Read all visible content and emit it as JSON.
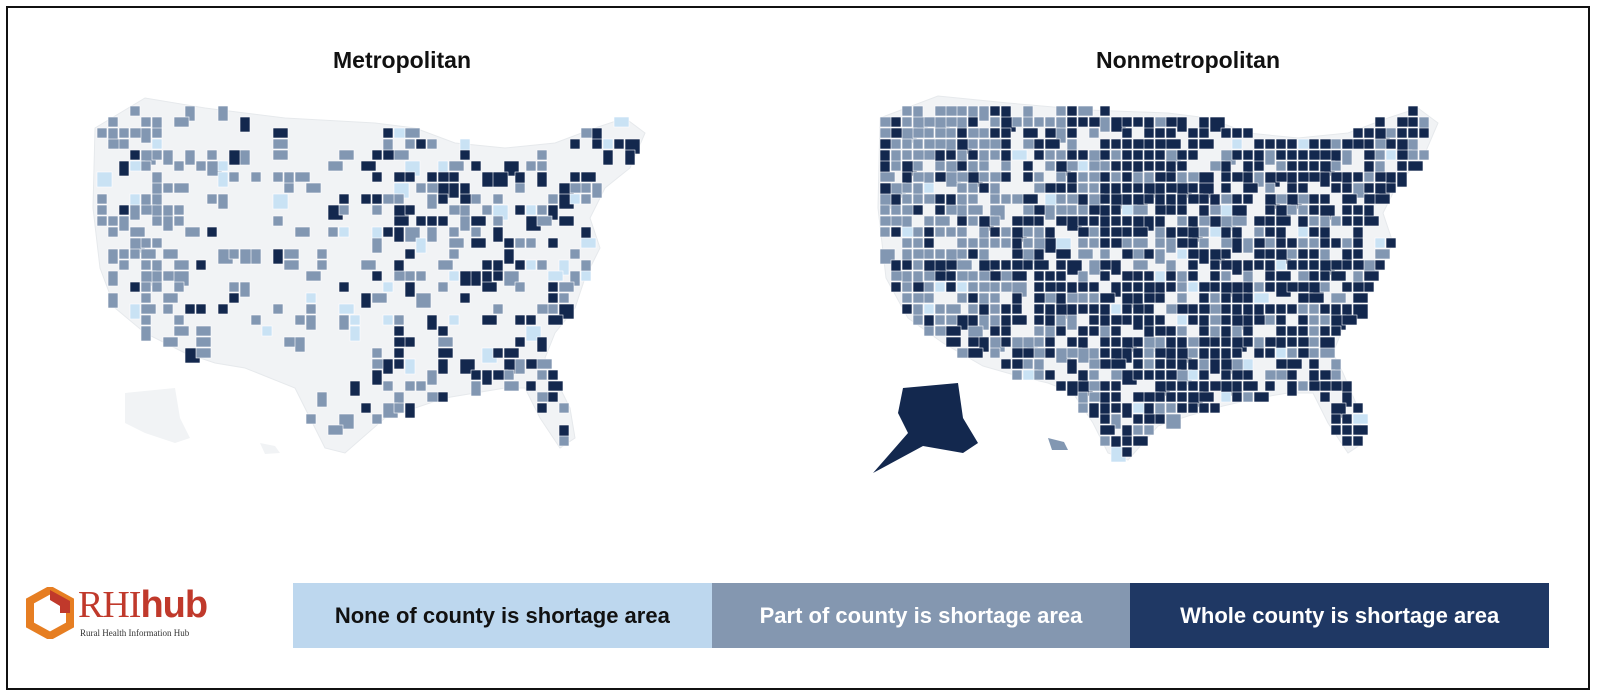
{
  "maps": [
    {
      "title": "Metropolitan",
      "icon": "us-county-map-icon"
    },
    {
      "title": "Nonmetropolitan",
      "icon": "us-county-map-icon"
    }
  ],
  "legend": [
    {
      "label": "None of county is shortage area",
      "color": "#bdd7ee",
      "text_color": "#111111"
    },
    {
      "label": "Part of county is shortage area",
      "color": "#8497b0",
      "text_color": "#ffffff"
    },
    {
      "label": "Whole county is shortage area",
      "color": "#1f3864",
      "text_color": "#ffffff"
    }
  ],
  "logo": {
    "brand_main": "RHI",
    "brand_suffix": "hub",
    "subtitle": "Rural Health Information Hub",
    "icon": "rhihub-logo-icon"
  },
  "colors": {
    "base_land": "#f1f3f5",
    "light": "#c9e2f4",
    "medium": "#8297b2",
    "dark": "#13284e"
  }
}
